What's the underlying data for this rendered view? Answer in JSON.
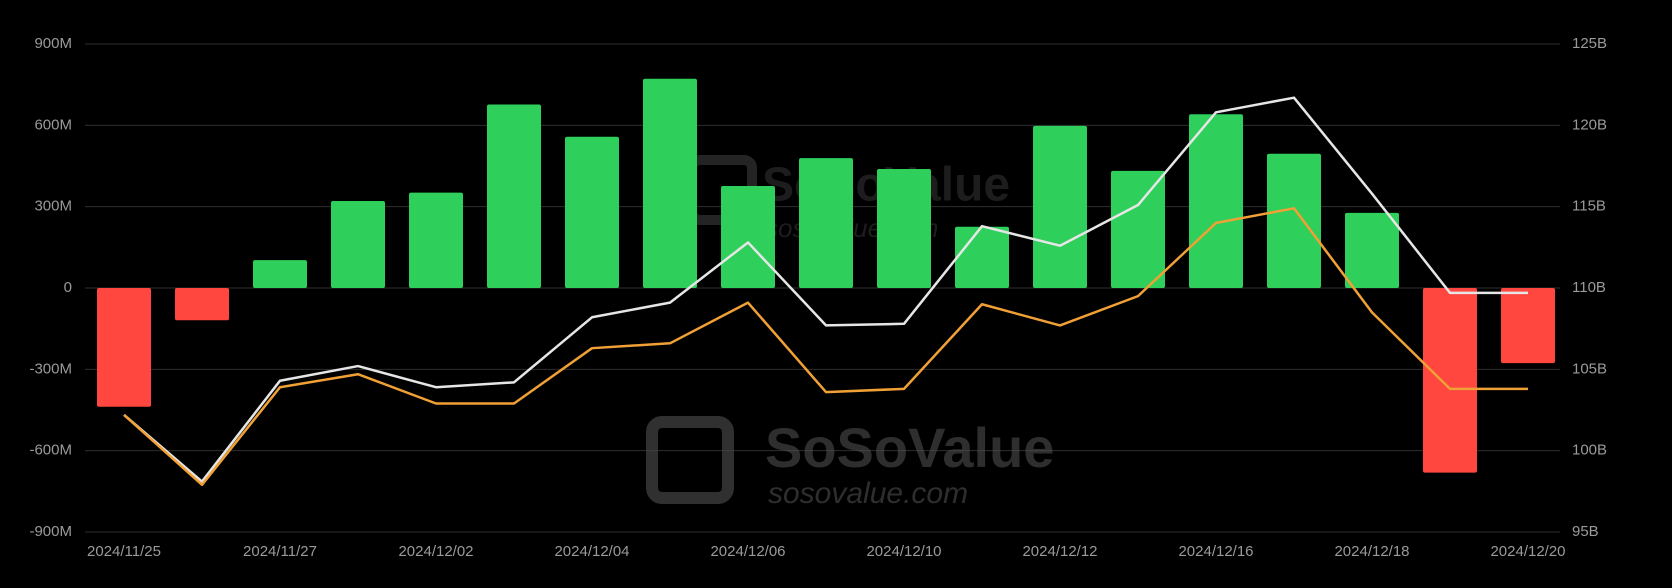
{
  "chart_data": {
    "type": "bar",
    "categories": [
      "2024/11/25",
      null,
      "2024/11/27",
      null,
      "2024/12/02",
      null,
      "2024/12/04",
      null,
      "2024/12/06",
      null,
      "2024/12/10",
      null,
      "2024/12/12",
      null,
      "2024/12/16",
      null,
      "2024/12/18",
      null,
      "2024/12/20"
    ],
    "values": [
      -438,
      -119,
      103,
      321,
      352,
      677,
      558,
      772,
      376,
      479,
      439,
      226,
      598,
      432,
      641,
      495,
      277,
      -681,
      -277
    ],
    "positive_color": "#2ecf5a",
    "negative_color": "#ff4740",
    "ylim": [
      -900,
      900
    ],
    "yticks": [
      {
        "value": -900,
        "label": "-900M"
      },
      {
        "value": -600,
        "label": "-600M"
      },
      {
        "value": -300,
        "label": "-300M"
      },
      {
        "value": 0,
        "label": "0"
      },
      {
        "value": 300,
        "label": "300M"
      },
      {
        "value": 600,
        "label": "600M"
      },
      {
        "value": 900,
        "label": "900M"
      }
    ],
    "y2lim": [
      95,
      125
    ],
    "y2ticks": [
      {
        "value": 95,
        "label": "95B"
      },
      {
        "value": 100,
        "label": "100B"
      },
      {
        "value": 105,
        "label": "105B"
      },
      {
        "value": 110,
        "label": "110B"
      },
      {
        "value": 115,
        "label": "115B"
      },
      {
        "value": 120,
        "label": "120B"
      },
      {
        "value": 125,
        "label": "125B"
      }
    ],
    "series": [
      {
        "type": "line",
        "axis": "y2",
        "color": "#e6e6e6",
        "values": [
          102.2,
          98.1,
          104.3,
          105.2,
          103.9,
          104.2,
          108.2,
          109.1,
          112.8,
          107.7,
          107.8,
          113.8,
          112.6,
          115.1,
          120.8,
          121.7,
          115.8,
          109.7,
          109.7
        ]
      },
      {
        "type": "line",
        "axis": "y2",
        "color": "#f0a035",
        "values": [
          102.2,
          97.9,
          103.9,
          104.7,
          102.9,
          102.9,
          106.3,
          106.6,
          109.1,
          103.6,
          103.8,
          109.0,
          107.7,
          109.5,
          114.0,
          114.9,
          108.5,
          103.8,
          103.8
        ]
      }
    ],
    "grid": true,
    "watermark": [
      "SoSoValue",
      "sosovalue.com"
    ]
  }
}
